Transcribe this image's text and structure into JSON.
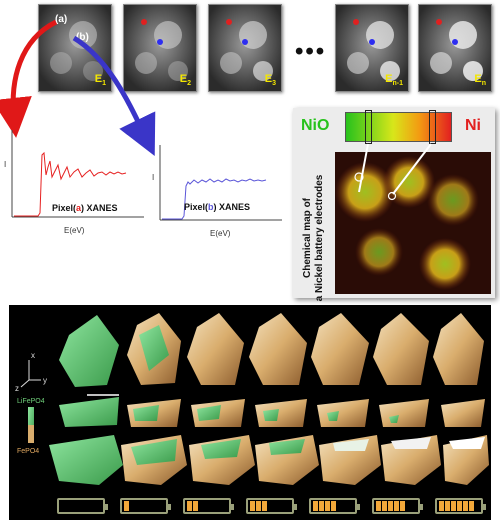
{
  "pixel_markers": {
    "a": "(a)",
    "b": "(b)"
  },
  "energy_frames": [
    {
      "label": "E",
      "sub": "1"
    },
    {
      "label": "E",
      "sub": "2"
    },
    {
      "label": "E",
      "sub": "3"
    },
    {
      "label": "E",
      "sub": "n-1"
    },
    {
      "label": "E",
      "sub": "n"
    }
  ],
  "ellipsis": "•••",
  "spectrum_a": {
    "prefix": "Pixel(",
    "marker": "a",
    "suffix": ") XANES",
    "ylabel": "I",
    "xlabel": "E(eV)",
    "color": "#e62020"
  },
  "spectrum_b": {
    "prefix": "Pixel(",
    "marker": "b",
    "suffix": ") XANES",
    "ylabel": "I",
    "xlabel": "E(eV)",
    "color": "#5a55d8"
  },
  "chem_map": {
    "left_label": "NiO",
    "right_label": "Ni",
    "caption_line1": "Chemical map of",
    "caption_line2": "a Nickel battery electrodes",
    "left_color": "#27c21c",
    "right_color": "#e22020"
  },
  "tomo": {
    "axes": {
      "x": "x",
      "y": "y",
      "z": "z"
    },
    "legend_top": "LiFePO4",
    "legend_bottom": "FePO4",
    "battery_levels": [
      0,
      0.14,
      0.29,
      0.43,
      0.57,
      0.71,
      0.86
    ]
  }
}
